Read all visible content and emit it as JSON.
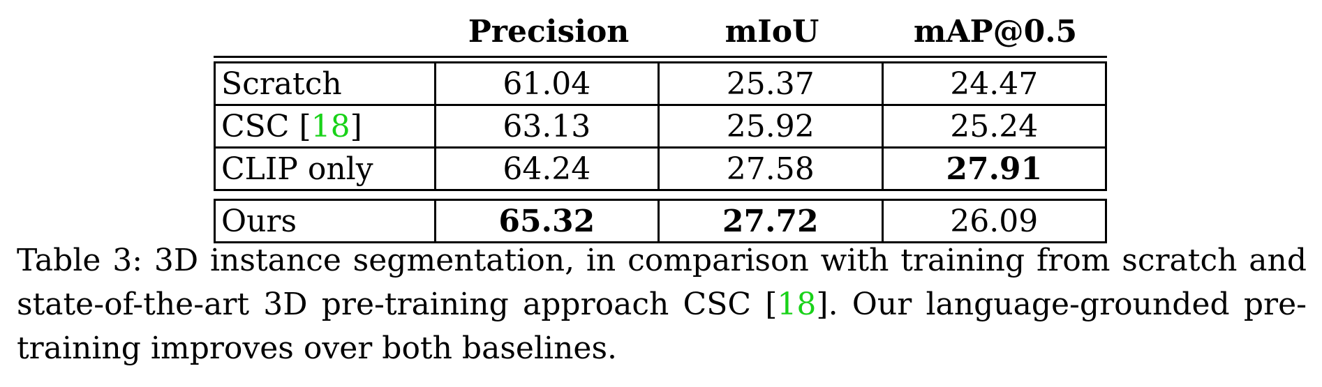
{
  "table": {
    "headers": [
      "",
      "Precision",
      "mIoU",
      "mAP@0.5"
    ],
    "rows": [
      {
        "method": "Scratch",
        "cite": "",
        "after": "",
        "values": [
          "61.04",
          "25.37",
          "24.47"
        ],
        "bold": [
          false,
          false,
          false
        ]
      },
      {
        "method": "CSC [",
        "cite": "18",
        "after": "]",
        "values": [
          "63.13",
          "25.92",
          "25.24"
        ],
        "bold": [
          false,
          false,
          false
        ]
      },
      {
        "method": "CLIP only",
        "cite": "",
        "after": "",
        "values": [
          "64.24",
          "27.58",
          "27.91"
        ],
        "bold": [
          false,
          false,
          true
        ]
      }
    ],
    "ours": {
      "method": "Ours",
      "values": [
        "65.32",
        "27.72",
        "26.09"
      ],
      "bold": [
        true,
        true,
        false
      ]
    }
  },
  "caption": {
    "part1": "Table 3: 3D instance segmentation, in comparison with training from scratch and state-of-the-art 3D pre-training approach CSC [",
    "cite": "18",
    "part2": "]. Our language-grounded pre-training improves over both baselines."
  }
}
